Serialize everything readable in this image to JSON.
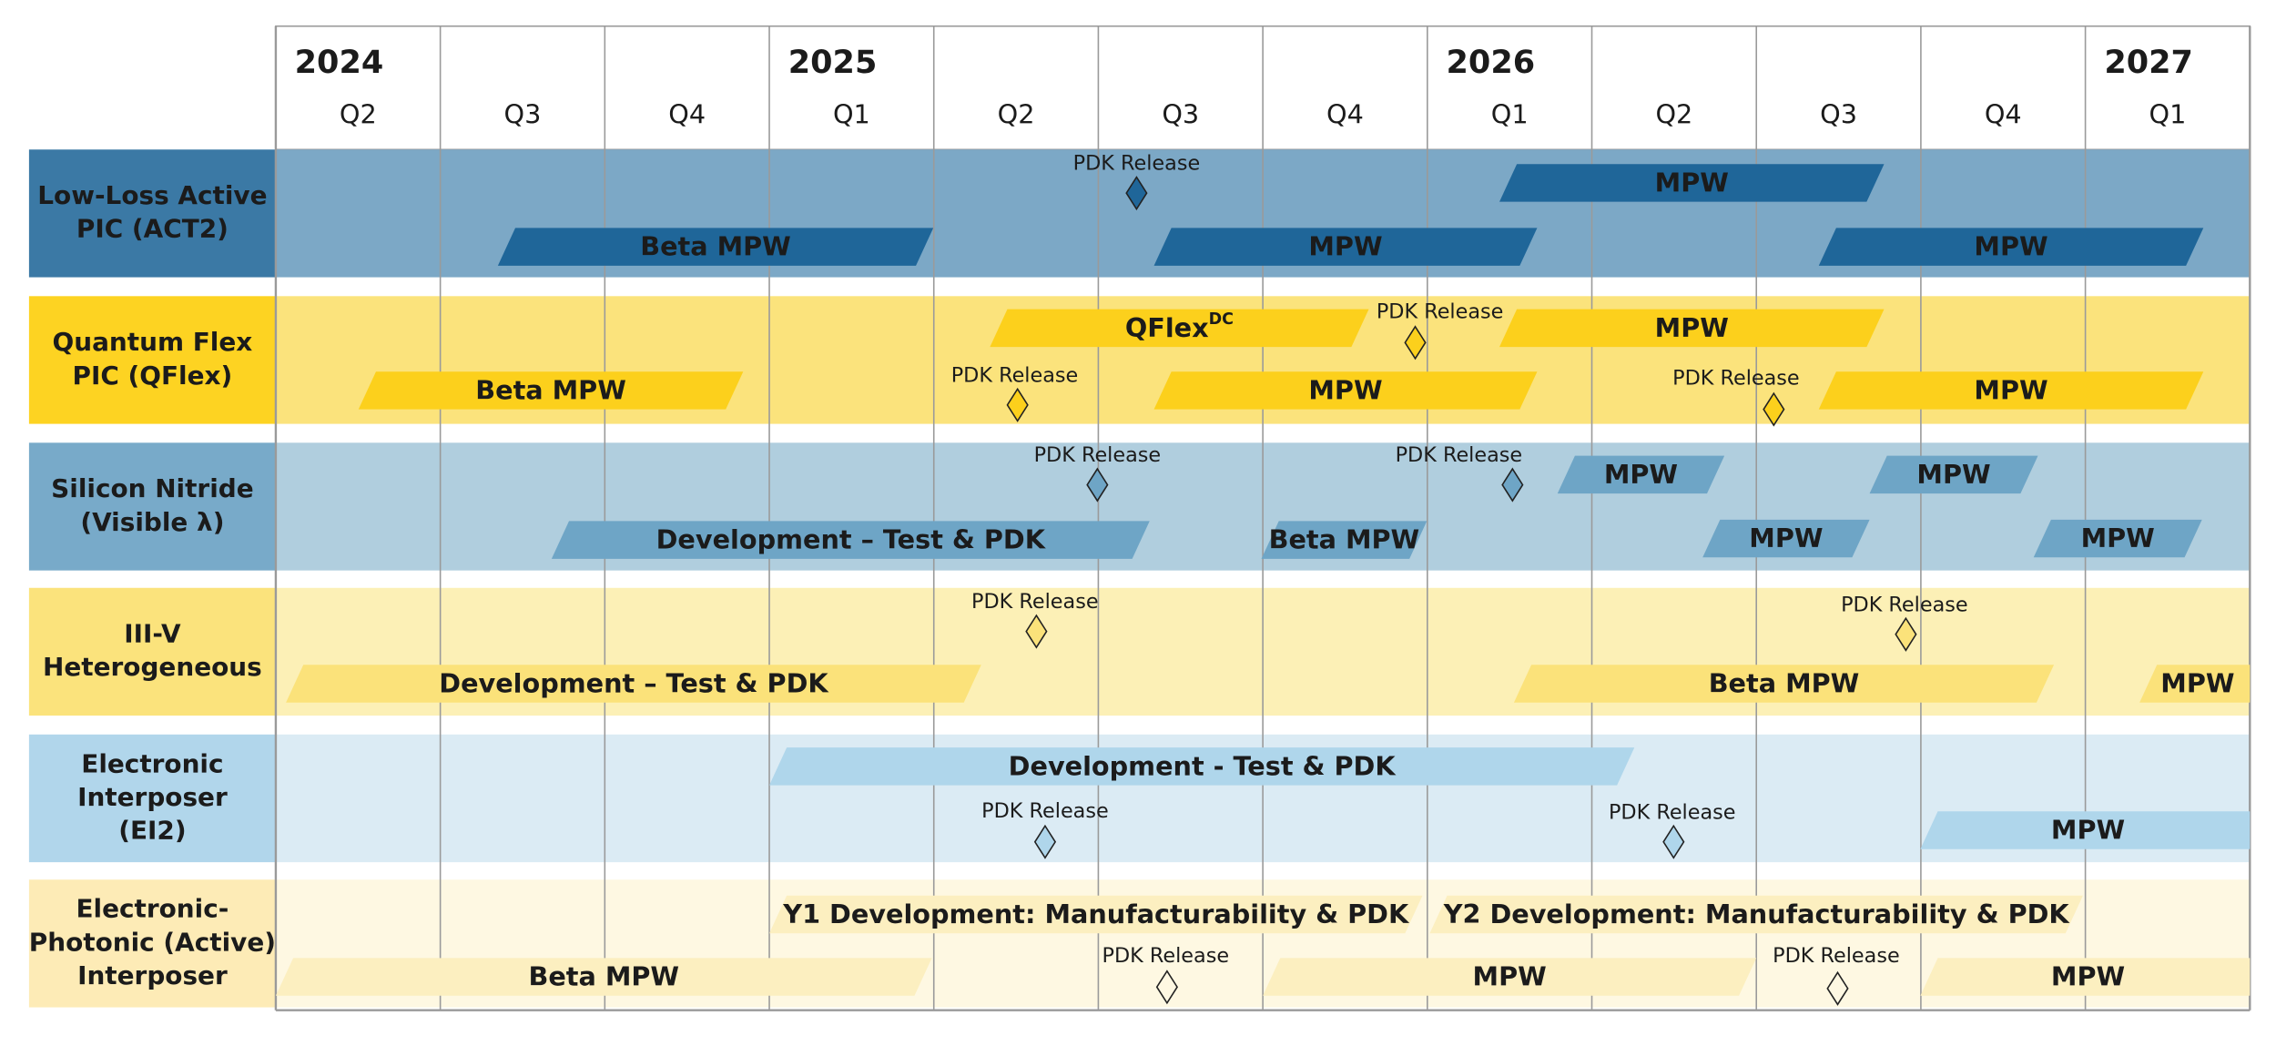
{
  "years": [
    "2024",
    "2025",
    "2026",
    "2027"
  ],
  "quarters": [
    "Q2",
    "Q3",
    "Q4",
    "Q1",
    "Q2",
    "Q3",
    "Q4",
    "Q1",
    "Q2",
    "Q3",
    "Q4",
    "Q1"
  ],
  "rows": [
    {
      "label": [
        "Low-Loss Active",
        "PIC (ACT2)"
      ],
      "bars": [
        {
          "label": "MPW"
        },
        {
          "label": "Beta MPW"
        },
        {
          "label": "MPW"
        },
        {
          "label": "MPW"
        }
      ],
      "milestones": [
        {
          "label": "PDK Release"
        }
      ]
    },
    {
      "label": [
        "Quantum Flex",
        "PIC (QFlex)"
      ],
      "bars": [
        {
          "label": "QFlex",
          "superscript": "DC"
        },
        {
          "label": "MPW"
        },
        {
          "label": "Beta MPW"
        },
        {
          "label": "MPW"
        },
        {
          "label": "MPW"
        }
      ],
      "milestones": [
        {
          "label": "PDK Release"
        },
        {
          "label": "PDK Release"
        },
        {
          "label": "PDK Release"
        }
      ]
    },
    {
      "label": [
        "Silicon Nitride",
        "(Visible λ)"
      ],
      "bars": [
        {
          "label": "MPW"
        },
        {
          "label": "MPW"
        },
        {
          "label": "Development – Test & PDK"
        },
        {
          "label": "Beta MPW"
        },
        {
          "label": "MPW"
        },
        {
          "label": "MPW"
        }
      ],
      "milestones": [
        {
          "label": "PDK Release"
        },
        {
          "label": "PDK Release"
        }
      ]
    },
    {
      "label": [
        "III-V",
        "Heterogeneous"
      ],
      "bars": [
        {
          "label": "Development – Test & PDK"
        },
        {
          "label": "Beta MPW"
        },
        {
          "label": "MPW"
        }
      ],
      "milestones": [
        {
          "label": "PDK Release"
        },
        {
          "label": "PDK Release"
        }
      ]
    },
    {
      "label": [
        "Electronic",
        "Interposer",
        "(EI2)"
      ],
      "bars": [
        {
          "label": "Development - Test & PDK"
        },
        {
          "label": "MPW"
        }
      ],
      "milestones": [
        {
          "label": "PDK Release"
        },
        {
          "label": "PDK Release"
        }
      ]
    },
    {
      "label": [
        "Electronic-",
        "Photonic (Active)",
        "Interposer"
      ],
      "bars": [
        {
          "label": "Y1 Development: Manufacturability & PDK"
        },
        {
          "label": "Y2 Development: Manufacturability & PDK"
        },
        {
          "label": "Beta MPW"
        },
        {
          "label": "MPW"
        },
        {
          "label": "MPW"
        }
      ],
      "milestones": [
        {
          "label": "PDK Release"
        },
        {
          "label": "PDK Release"
        }
      ]
    }
  ]
}
